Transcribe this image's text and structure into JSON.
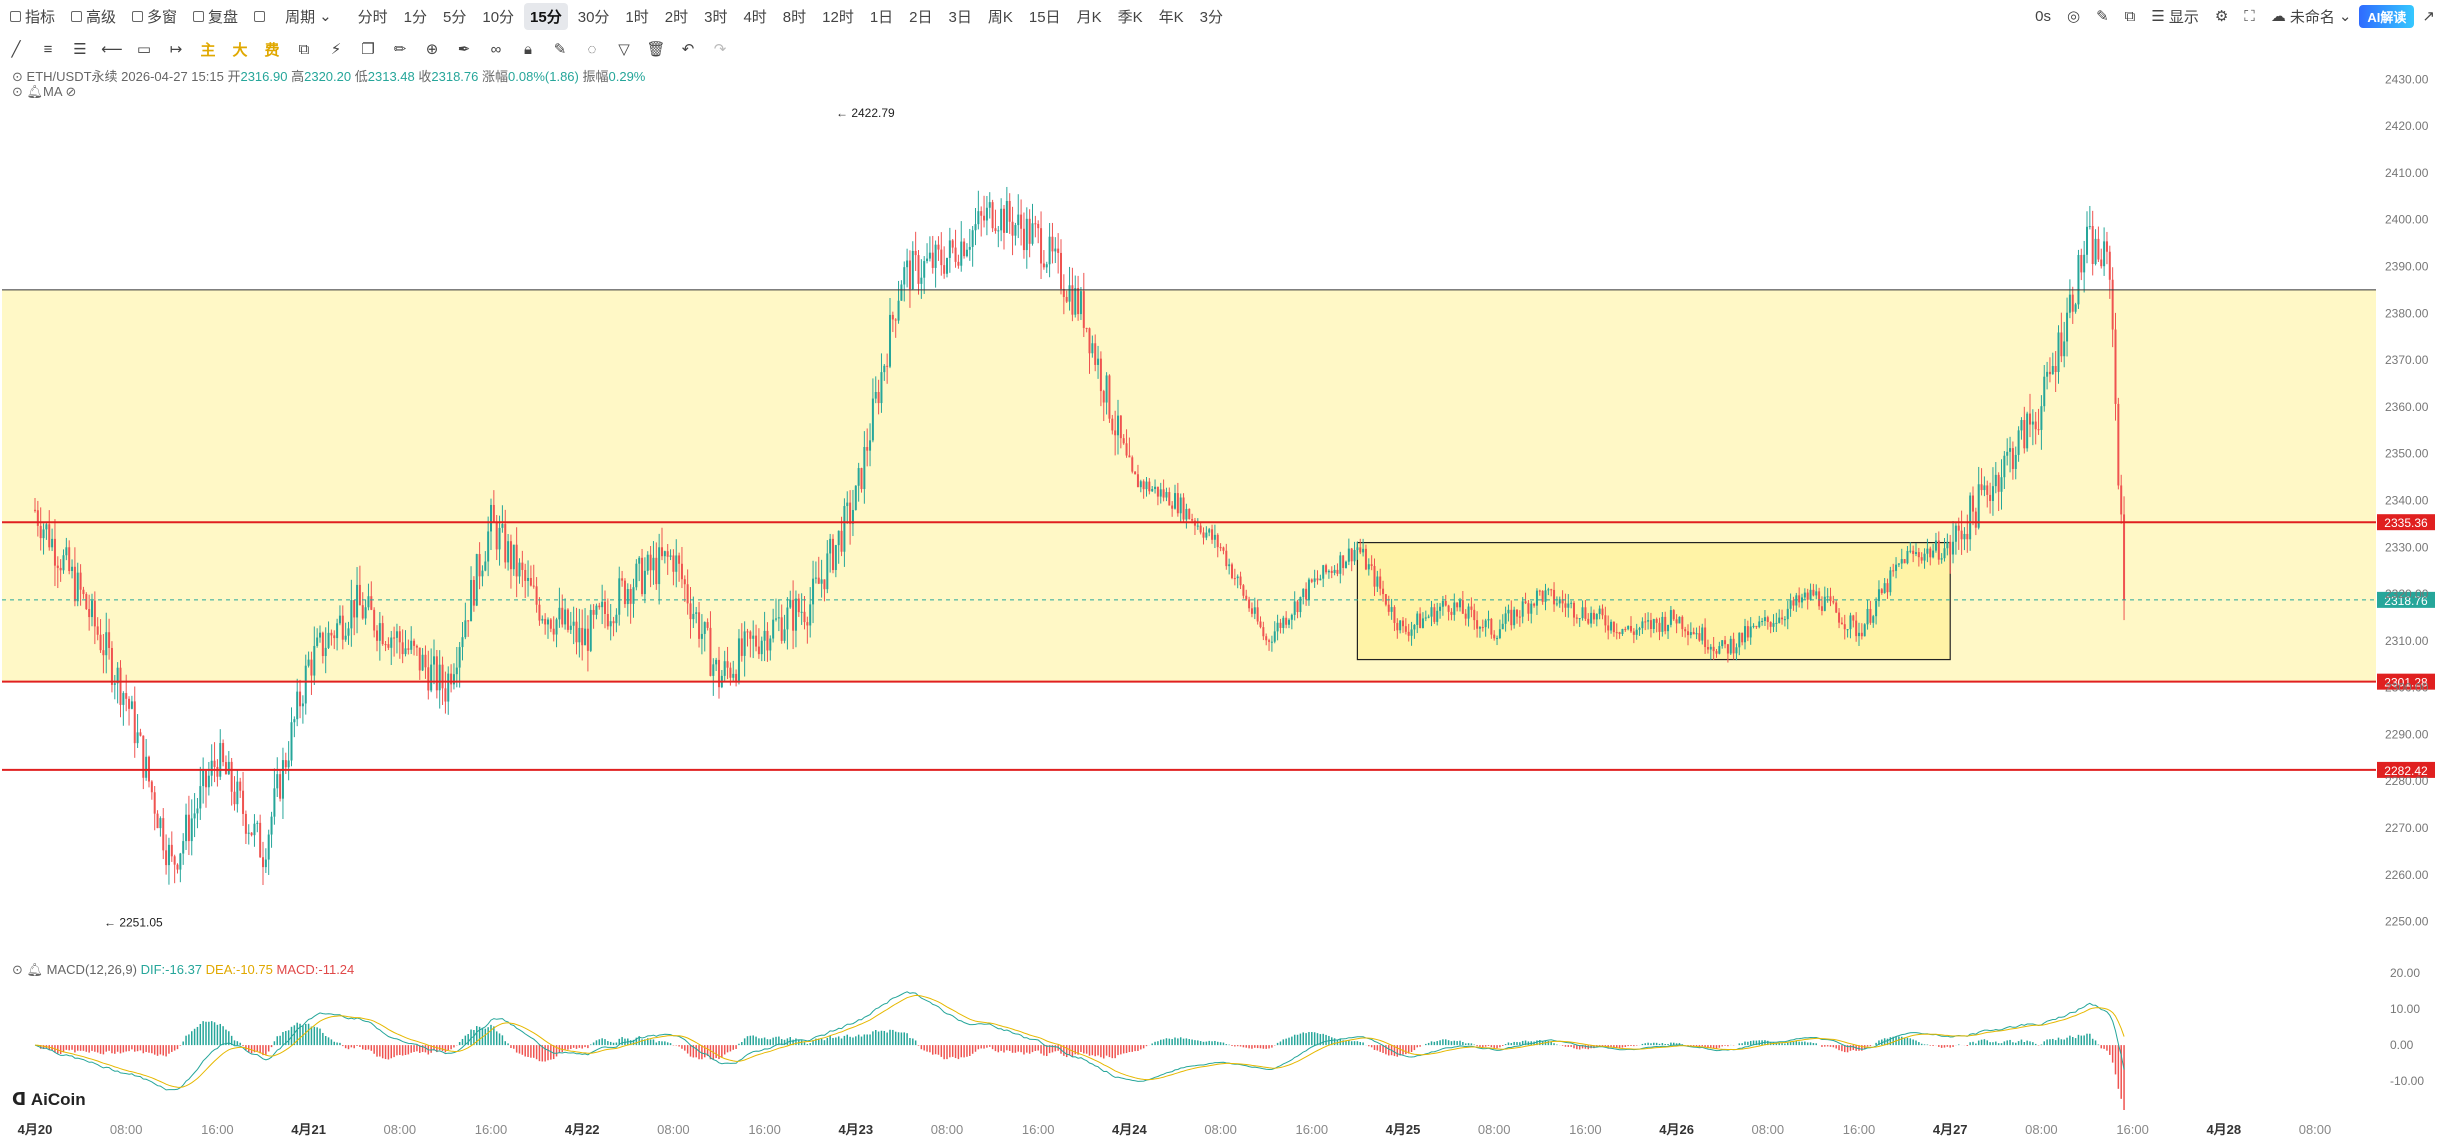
{
  "toolbar": {
    "items": [
      {
        "label": "指标",
        "icon": "indicator-icon"
      },
      {
        "label": "高级",
        "icon": "advanced-icon"
      },
      {
        "label": "多窗",
        "icon": "multi-window-icon"
      },
      {
        "label": "复盘",
        "icon": "replay-icon"
      },
      {
        "label": "",
        "icon": "chart-style-icon"
      },
      {
        "label": "周期",
        "icon": "chevron-down-icon"
      }
    ],
    "intervals": [
      "分时",
      "1分",
      "5分",
      "10分",
      "15分",
      "30分",
      "1时",
      "2时",
      "3时",
      "4时",
      "8时",
      "12时",
      "1日",
      "2日",
      "3日",
      "周K",
      "15日",
      "月K",
      "季K",
      "年K",
      "3分"
    ],
    "active_interval": "15分",
    "right": {
      "countdown": "0s",
      "display": "显示",
      "unnamed": "未命名",
      "ai": "AI解读"
    }
  },
  "symbol_info": {
    "pair": "ETH/USDT永续",
    "time": "2026-04-27 15:15",
    "open_label": "开",
    "open": "2316.90",
    "high_label": "高",
    "high": "2320.20",
    "low_label": "低",
    "low": "2313.48",
    "close_label": "收",
    "close": "2318.76",
    "change_label": "涨幅",
    "change": "0.08%(1.86)",
    "amp_label": "振幅",
    "amp": "0.29%"
  },
  "ma_label": "MA",
  "macd": {
    "name": "MACD(12,26,9)",
    "dif": "DIF:-16.37",
    "dea": "DEA:-10.75",
    "macd": "MACD:-11.24"
  },
  "logo": "AiCoin",
  "colors": {
    "up": "#26a69a",
    "down": "#ef5350",
    "zone": "#fff8c6",
    "box": "#fff3a6",
    "redline": "#e02020",
    "dif": "#26a69a",
    "dea": "#e6b800"
  },
  "chart_data": {
    "type": "candlestick",
    "y_range": [
      2245,
      2432
    ],
    "y_ticks": [
      2430,
      2420,
      2410,
      2400,
      2390,
      2380,
      2370,
      2360,
      2350,
      2340,
      2330,
      2320,
      2310,
      2300,
      2290,
      2280,
      2270,
      2260,
      2250
    ],
    "y_tick_labels": [
      "2430.00",
      "2420.00",
      "2410.00",
      "2400.00",
      "2390.00",
      "2380.00",
      "2370.00",
      "2360.00",
      "2350.00",
      "2340.00",
      "2330.00",
      "2320.00",
      "2310.00",
      "2300.00",
      "2290.00",
      "2280.00",
      "2270.00",
      "2260.00",
      "2250.00"
    ],
    "x_labels": [
      "4月20",
      "08:00",
      "16:00",
      "4月21",
      "08:00",
      "16:00",
      "4月22",
      "08:00",
      "16:00",
      "4月23",
      "08:00",
      "16:00",
      "4月24",
      "08:00",
      "16:00",
      "4月25",
      "08:00",
      "16:00",
      "4月26",
      "08:00",
      "16:00",
      "4月27",
      "08:00",
      "16:00",
      "4月28",
      "08:00"
    ],
    "x_start_label": "4月20 00:00",
    "x_step_hours": 8,
    "current_price": "2318.76",
    "horizontal_lines": [
      {
        "price": 2385,
        "color": "#333333",
        "label": ""
      },
      {
        "price": 2335.36,
        "color": "#e02020",
        "label": "2335.36"
      },
      {
        "price": 2301.28,
        "color": "#e02020",
        "label": "2301.28"
      },
      {
        "price": 2282.42,
        "color": "#e02020",
        "label": "2282.42"
      }
    ],
    "zone": {
      "from": 2301.28,
      "to": 2385
    },
    "box": {
      "from_label": "4月24 20:00",
      "to_label": "4月27 00:00",
      "low": 2306,
      "high": 2331
    },
    "annotations": [
      {
        "text": "2422.79",
        "price": 2422.79
      },
      {
        "text": "2251.05",
        "price": 2251.05
      }
    ],
    "path_points": [
      [
        "4月20 00:00",
        2338
      ],
      [
        "4月20 04:00",
        2320
      ],
      [
        "4月20 08:00",
        2298
      ],
      [
        "4月20 12:00",
        2262
      ],
      [
        "4月20 16:00",
        2285
      ],
      [
        "4月20 20:00",
        2265
      ],
      [
        "4月21 00:00",
        2305
      ],
      [
        "4月21 04:00",
        2318
      ],
      [
        "4月21 08:00",
        2310
      ],
      [
        "4月21 12:00",
        2300
      ],
      [
        "4月21 16:00",
        2335
      ],
      [
        "4月21 20:00",
        2318
      ],
      [
        "4月22 00:00",
        2310
      ],
      [
        "4月22 04:00",
        2322
      ],
      [
        "4月22 08:00",
        2328
      ],
      [
        "4月22 12:00",
        2302
      ],
      [
        "4月22 16:00",
        2312
      ],
      [
        "4月22 20:00",
        2318
      ],
      [
        "4月23 00:00",
        2340
      ],
      [
        "4月23 04:00",
        2388
      ],
      [
        "4月23 08:00",
        2392
      ],
      [
        "4月23 12:00",
        2402
      ],
      [
        "4月23 16:00",
        2396
      ],
      [
        "4月23 20:00",
        2380
      ],
      [
        "4月24 00:00",
        2345
      ],
      [
        "4月24 04:00",
        2340
      ],
      [
        "4月24 08:00",
        2330
      ],
      [
        "4月24 12:00",
        2310
      ],
      [
        "4月24 16:00",
        2322
      ],
      [
        "4月24 20:00",
        2330
      ],
      [
        "4月25 00:00",
        2312
      ],
      [
        "4月25 04:00",
        2318
      ],
      [
        "4月25 08:00",
        2312
      ],
      [
        "4月25 12:00",
        2320
      ],
      [
        "4月25 16:00",
        2316
      ],
      [
        "4月25 20:00",
        2312
      ],
      [
        "4月26 00:00",
        2315
      ],
      [
        "4月26 04:00",
        2308
      ],
      [
        "4月26 08:00",
        2314
      ],
      [
        "4月26 12:00",
        2320
      ],
      [
        "4月26 16:00",
        2312
      ],
      [
        "4月26 20:00",
        2328
      ],
      [
        "4月27 00:00",
        2330
      ],
      [
        "4月27 04:00",
        2345
      ],
      [
        "4月27 08:00",
        2360
      ],
      [
        "4月27 12:00",
        2395
      ],
      [
        "4月27 14:00",
        2390
      ],
      [
        "4月27 15:15",
        2318.76
      ]
    ],
    "macd_range": [
      -18,
      25
    ],
    "macd_ticks": [
      20,
      10,
      0,
      -10
    ],
    "macd_tick_labels": [
      "20.00",
      "10.00",
      "0.00",
      "-10.00"
    ]
  }
}
